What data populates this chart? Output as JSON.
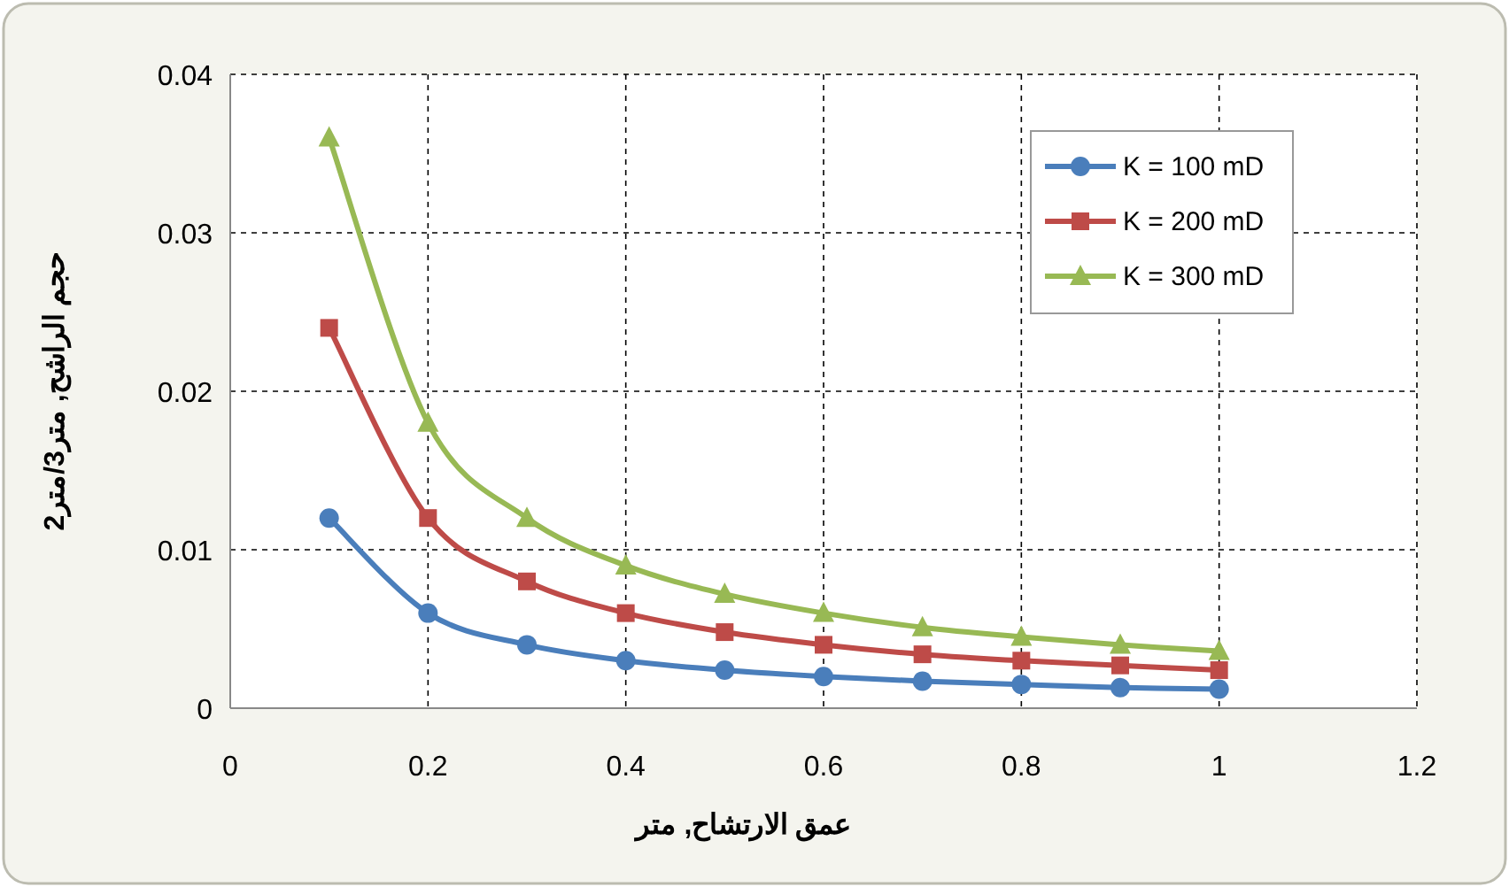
{
  "chart_data": {
    "type": "line",
    "xlabel": "عمق الارتشاح, متر",
    "ylabel": "حجم الراشح, متر3/متر2",
    "x": [
      0.1,
      0.2,
      0.3,
      0.4,
      0.5,
      0.6,
      0.7,
      0.8,
      0.9,
      1.0
    ],
    "series": [
      {
        "name": "K = 100 mD",
        "color": "#4a7ebb",
        "marker": "circle",
        "values": [
          0.012,
          0.006,
          0.004,
          0.003,
          0.0024,
          0.002,
          0.0017,
          0.0015,
          0.0013,
          0.0012
        ]
      },
      {
        "name": "K = 200 mD",
        "color": "#be4b48",
        "marker": "square",
        "values": [
          0.024,
          0.012,
          0.008,
          0.006,
          0.0048,
          0.004,
          0.0034,
          0.003,
          0.0027,
          0.0024
        ]
      },
      {
        "name": "K = 300 mD",
        "color": "#98b954",
        "marker": "triangle",
        "values": [
          0.036,
          0.018,
          0.012,
          0.009,
          0.0072,
          0.006,
          0.0051,
          0.0045,
          0.004,
          0.0036
        ]
      }
    ],
    "xlim": [
      0,
      1.2
    ],
    "xticks": [
      0,
      0.2,
      0.4,
      0.6,
      0.8,
      1,
      1.2
    ],
    "ylim": [
      0,
      0.04
    ],
    "yticks": [
      0,
      0.01,
      0.02,
      0.03,
      0.04
    ],
    "grid": true,
    "legend": "top right",
    "line_style": "solid"
  }
}
